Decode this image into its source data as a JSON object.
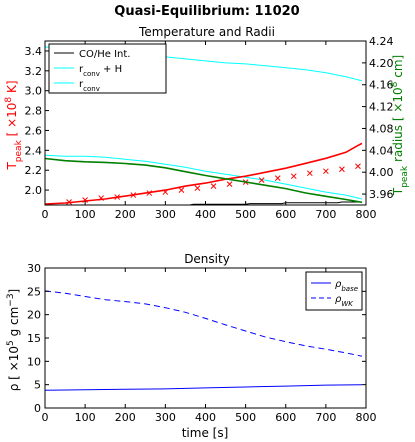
{
  "figure": {
    "suptitle": "Quasi-Equilibrium: 11020"
  },
  "chart_data": [
    {
      "type": "line",
      "title": "Temperature and Radii",
      "xlim": [
        0,
        800
      ],
      "xticks": [
        0,
        100,
        200,
        300,
        400,
        500,
        600,
        700,
        800
      ],
      "left_axis": {
        "label": "T_peak [ ×10^8 K]",
        "label_parts": {
          "base": "T",
          "sub": "peak",
          "mid": " [ ×10",
          "sup": "8",
          "end": " K]"
        },
        "color": "#ff0000",
        "ylim": [
          1.85,
          3.5
        ],
        "ticks": [
          2.0,
          2.2,
          2.4,
          2.6,
          2.8,
          3.0,
          3.2,
          3.4
        ],
        "tick_labels": [
          "2.0",
          "2.2",
          "2.4",
          "2.6",
          "2.8",
          "3.0",
          "3.2",
          "3.4"
        ]
      },
      "right_axis": {
        "label": "T_peak radius [ ×10^8 cm]",
        "label_parts": {
          "base": "T",
          "sub": "peak",
          "mid": " radius [ ×10",
          "sup": "8",
          "end": " cm]"
        },
        "color": "#008000",
        "ylim": [
          3.94,
          4.24
        ],
        "ticks": [
          3.96,
          4.0,
          4.04,
          4.08,
          4.12,
          4.16,
          4.2,
          4.24
        ],
        "tick_labels": [
          "3.96",
          "4.00",
          "4.04",
          "4.08",
          "4.12",
          "4.16",
          "4.20",
          "4.24"
        ]
      },
      "legend": {
        "position": "top-left",
        "entries": [
          {
            "label": "CO/He Int.",
            "color": "#000000"
          },
          {
            "label": "r_conv + H",
            "parts": {
              "base": "r",
              "sub": "conv",
              "end": " + H"
            },
            "color": "#00ffff"
          },
          {
            "label": "r_conv",
            "parts": {
              "base": "r",
              "sub": "conv",
              "end": ""
            },
            "color": "#00ffff"
          }
        ]
      },
      "series": [
        {
          "name": "CO/He Int.",
          "axis": "right",
          "color": "#000000",
          "style": "line",
          "x": [
            0,
            360,
            370,
            500,
            510,
            590,
            600,
            730,
            740,
            790
          ],
          "y": [
            3.94,
            3.94,
            3.9412,
            3.9412,
            3.9425,
            3.9425,
            3.944,
            3.944,
            3.9455,
            3.9455
          ]
        },
        {
          "name": "r_conv + H",
          "axis": "left",
          "color": "#00ffff",
          "style": "line",
          "x": [
            0,
            50,
            100,
            150,
            200,
            250,
            300,
            350,
            400,
            450,
            500,
            550,
            600,
            650,
            700,
            750,
            790
          ],
          "y": [
            3.44,
            3.43,
            3.41,
            3.39,
            3.37,
            3.36,
            3.34,
            3.32,
            3.3,
            3.28,
            3.27,
            3.25,
            3.23,
            3.21,
            3.18,
            3.14,
            3.1
          ]
        },
        {
          "name": "r_conv",
          "axis": "left",
          "color": "#00ffff",
          "style": "line",
          "x": [
            0,
            50,
            100,
            150,
            200,
            250,
            300,
            350,
            400,
            450,
            500,
            550,
            600,
            650,
            700,
            750,
            790
          ],
          "y": [
            2.35,
            2.34,
            2.34,
            2.33,
            2.31,
            2.29,
            2.26,
            2.23,
            2.19,
            2.16,
            2.13,
            2.1,
            2.06,
            2.02,
            1.98,
            1.95,
            1.91
          ]
        },
        {
          "name": "T_peak",
          "axis": "left",
          "color": "#ff0000",
          "style": "line",
          "x": [
            0,
            50,
            100,
            150,
            200,
            250,
            300,
            350,
            400,
            450,
            500,
            550,
            600,
            650,
            700,
            750,
            780,
            790
          ],
          "y": [
            1.86,
            1.87,
            1.89,
            1.91,
            1.94,
            1.97,
            2.0,
            2.04,
            2.07,
            2.11,
            2.14,
            2.18,
            2.22,
            2.27,
            2.32,
            2.38,
            2.45,
            2.47
          ]
        },
        {
          "name": "T_peak markers",
          "axis": "left",
          "color": "#ff0000",
          "style": "marker-x",
          "x": [
            60,
            100,
            140,
            180,
            220,
            260,
            300,
            340,
            380,
            420,
            460,
            500,
            540,
            580,
            620,
            660,
            700,
            740,
            780
          ],
          "y": [
            1.88,
            1.9,
            1.92,
            1.93,
            1.95,
            1.97,
            1.98,
            2.0,
            2.02,
            2.04,
            2.06,
            2.08,
            2.1,
            2.12,
            2.14,
            2.17,
            2.19,
            2.21,
            2.24
          ]
        },
        {
          "name": "T_peak radius",
          "axis": "right",
          "color": "#008000",
          "style": "line",
          "x": [
            0,
            50,
            100,
            150,
            200,
            250,
            300,
            350,
            400,
            450,
            500,
            550,
            600,
            650,
            700,
            750,
            790
          ],
          "y": [
            4.025,
            4.021,
            4.019,
            4.018,
            4.016,
            4.013,
            4.008,
            4.001,
            3.994,
            3.988,
            3.982,
            3.976,
            3.97,
            3.962,
            3.956,
            3.95,
            3.945
          ]
        }
      ]
    },
    {
      "type": "line",
      "title": "Density",
      "xlabel": "time [s]",
      "ylabel": "ρ [ ×10^5 g cm^-3]",
      "ylabel_parts": {
        "a": "ρ [ ×10",
        "b": "5",
        "c": " g cm",
        "d": "−3",
        "e": "]"
      },
      "xlim": [
        0,
        800
      ],
      "ylim": [
        0,
        30
      ],
      "xticks": [
        0,
        100,
        200,
        300,
        400,
        500,
        600,
        700,
        800
      ],
      "yticks": [
        0,
        5,
        10,
        15,
        20,
        25,
        30
      ],
      "legend": {
        "position": "top-right",
        "entries": [
          {
            "label": "ρ_base",
            "parts": {
              "base": "ρ",
              "sub": "base"
            },
            "color": "#0000ff",
            "dash": false
          },
          {
            "label": "ρ_WK",
            "parts": {
              "base": "ρ",
              "sub": "WK"
            },
            "color": "#0000ff",
            "dash": true
          }
        ]
      },
      "series": [
        {
          "name": "ρ_base",
          "color": "#0000ff",
          "dash": false,
          "x": [
            0,
            100,
            200,
            300,
            400,
            500,
            600,
            700,
            790
          ],
          "y": [
            3.8,
            3.9,
            4.0,
            4.1,
            4.3,
            4.5,
            4.7,
            4.9,
            5.0
          ]
        },
        {
          "name": "ρ_WK",
          "color": "#0000ff",
          "dash": true,
          "x": [
            0,
            50,
            100,
            150,
            200,
            250,
            300,
            350,
            400,
            450,
            500,
            550,
            600,
            650,
            700,
            750,
            790
          ],
          "y": [
            25.1,
            24.6,
            23.9,
            23.2,
            22.8,
            22.3,
            21.5,
            20.5,
            19.2,
            17.8,
            16.5,
            15.2,
            14.2,
            13.3,
            12.6,
            11.8,
            11.1
          ]
        }
      ]
    }
  ]
}
